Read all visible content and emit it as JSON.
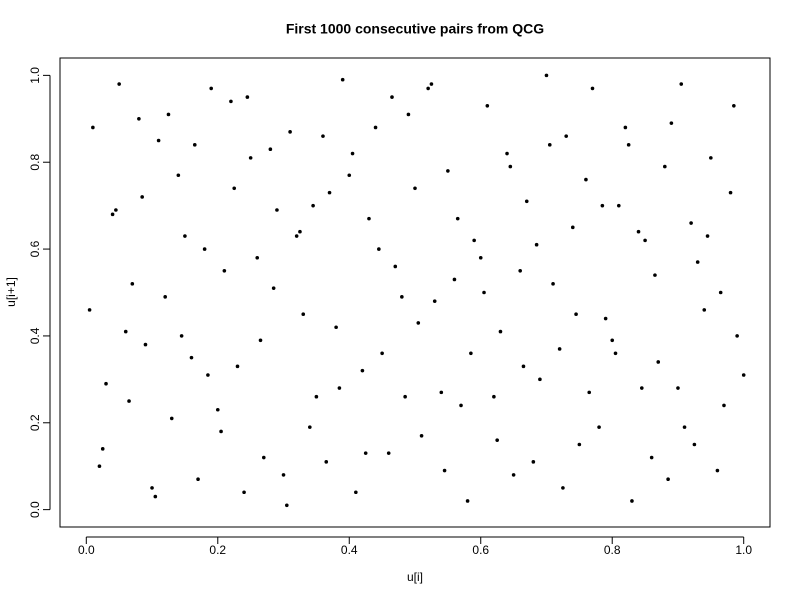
{
  "chart_data": {
    "type": "scatter",
    "title": "First 1000 consecutive pairs from QCG",
    "x_label": "u[i]",
    "y_label": "u[i+1]",
    "color": "#000000",
    "xlim": [
      -0.04,
      1.04
    ],
    "ylim": [
      -0.04,
      1.04
    ],
    "xticks": [
      {
        "value": 0,
        "label": "0.0"
      },
      0.2,
      0.4,
      0.6,
      0.8,
      {
        "value": 1,
        "label": "1.0"
      }
    ],
    "yticks": [
      {
        "value": 0,
        "label": "0.0"
      },
      0.2,
      0.4,
      0.6,
      0.8,
      {
        "value": 1,
        "label": "1.0"
      }
    ],
    "x": [
      0.01,
      0.03,
      0.05,
      0.07,
      0.09,
      0.11,
      0.13,
      0.15,
      0.17,
      0.19,
      0.21,
      0.23,
      0.25,
      0.27,
      0.29,
      0.31,
      0.33,
      0.35,
      0.37,
      0.39,
      0.41,
      0.43,
      0.45,
      0.47,
      0.49,
      0.51,
      0.53,
      0.55,
      0.57,
      0.59,
      0.61,
      0.63,
      0.65,
      0.67,
      0.69,
      0.71,
      0.73,
      0.75,
      0.77,
      0.79,
      0.81,
      0.83,
      0.85,
      0.87,
      0.89,
      0.91,
      0.93,
      0.95,
      0.97,
      0.99,
      0.02,
      0.04,
      0.06,
      0.08,
      0.1,
      0.12,
      0.14,
      0.16,
      0.18,
      0.2,
      0.22,
      0.24,
      0.26,
      0.28,
      0.3,
      0.32,
      0.34,
      0.36,
      0.38,
      0.4,
      0.42,
      0.44,
      0.46,
      0.48,
      0.5,
      0.52,
      0.54,
      0.56,
      0.58,
      0.6,
      0.62,
      0.64,
      0.66,
      0.68,
      0.7,
      0.72,
      0.74,
      0.76,
      0.78,
      0.8,
      0.82,
      0.84,
      0.86,
      0.88,
      0.9,
      0.92,
      0.94,
      0.96,
      0.98,
      1.0,
      0.005,
      0.025,
      0.045,
      0.065,
      0.085,
      0.105,
      0.125,
      0.145,
      0.165,
      0.185,
      0.205,
      0.225,
      0.245,
      0.265,
      0.285,
      0.305,
      0.325,
      0.345,
      0.365,
      0.385,
      0.405,
      0.425,
      0.445,
      0.465,
      0.485,
      0.505,
      0.525,
      0.545,
      0.565,
      0.585,
      0.605,
      0.625,
      0.645,
      0.665,
      0.685,
      0.705,
      0.725,
      0.745,
      0.765,
      0.785,
      0.805,
      0.825,
      0.845,
      0.865,
      0.885,
      0.905,
      0.925,
      0.945,
      0.965,
      0.985
    ],
    "values": [
      0.88,
      0.29,
      0.98,
      0.52,
      0.38,
      0.85,
      0.21,
      0.63,
      0.07,
      0.97,
      0.55,
      0.33,
      0.81,
      0.12,
      0.69,
      0.87,
      0.45,
      0.26,
      0.73,
      0.99,
      0.04,
      0.67,
      0.36,
      0.56,
      0.91,
      0.17,
      0.48,
      0.78,
      0.24,
      0.62,
      0.93,
      0.41,
      0.08,
      0.71,
      0.3,
      0.52,
      0.86,
      0.15,
      0.97,
      0.44,
      0.7,
      0.02,
      0.62,
      0.34,
      0.89,
      0.19,
      0.57,
      0.81,
      0.24,
      0.4,
      0.1,
      0.68,
      0.41,
      0.9,
      0.05,
      0.49,
      0.77,
      0.35,
      0.6,
      0.23,
      0.94,
      0.04,
      0.58,
      0.83,
      0.08,
      0.63,
      0.19,
      0.86,
      0.42,
      0.77,
      0.32,
      0.88,
      0.13,
      0.49,
      0.74,
      0.97,
      0.27,
      0.53,
      0.02,
      0.58,
      0.26,
      0.82,
      0.55,
      0.11,
      1.0,
      0.37,
      0.65,
      0.76,
      0.19,
      0.39,
      0.88,
      0.64,
      0.12,
      0.79,
      0.28,
      0.66,
      0.46,
      0.09,
      0.73,
      0.31,
      0.46,
      0.14,
      0.69,
      0.25,
      0.72,
      0.03,
      0.91,
      0.4,
      0.84,
      0.31,
      0.18,
      0.74,
      0.95,
      0.39,
      0.51,
      0.01,
      0.64,
      0.7,
      0.11,
      0.28,
      0.82,
      0.13,
      0.6,
      0.95,
      0.26,
      0.43,
      0.98,
      0.09,
      0.67,
      0.36,
      0.5,
      0.16,
      0.79,
      0.33,
      0.61,
      0.84,
      0.05,
      0.45,
      0.27,
      0.7,
      0.36,
      0.84,
      0.28,
      0.54,
      0.07,
      0.98,
      0.15,
      0.63,
      0.5,
      0.93
    ]
  }
}
